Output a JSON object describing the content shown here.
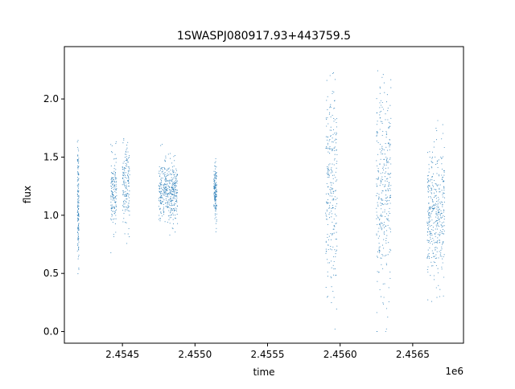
{
  "chart_data": {
    "type": "scatter",
    "title": "1SWASPJ080917.93+443759.5",
    "xlabel": "time",
    "ylabel": "flux",
    "x_offset_label": "1e6",
    "xlim": [
      2.4541,
      2.45685
    ],
    "ylim": [
      -0.1,
      2.45
    ],
    "x_ticks": [
      2.4545,
      2.455,
      2.4555,
      2.456,
      2.4565
    ],
    "x_tick_labels": [
      "2.4545",
      "2.4550",
      "2.4555",
      "2.4560",
      "2.4565"
    ],
    "y_ticks": [
      0.0,
      0.5,
      1.0,
      1.5,
      2.0
    ],
    "y_tick_labels": [
      "0.0",
      "0.5",
      "1.0",
      "1.5",
      "2.0"
    ],
    "grid": false,
    "marker_color": "#1f77b4",
    "series": [
      {
        "points_note": "approximate observation clusters (x in units of 1e6, flux mean, spread)",
        "clusters": [
          {
            "x_start": 2.45419,
            "x_end": 2.4542,
            "center": 1.1,
            "spread": 0.25
          },
          {
            "x_start": 2.45442,
            "x_end": 2.45446,
            "center": 1.2,
            "spread": 0.15
          },
          {
            "x_start": 2.4545,
            "x_end": 2.45455,
            "center": 1.25,
            "spread": 0.17
          },
          {
            "x_start": 2.45475,
            "x_end": 2.45488,
            "center": 1.2,
            "spread": 0.13
          },
          {
            "x_start": 2.45513,
            "x_end": 2.45515,
            "center": 1.2,
            "spread": 0.12
          },
          {
            "x_start": 2.4559,
            "x_end": 2.45598,
            "center": 1.2,
            "spread": 0.45
          },
          {
            "x_start": 2.45625,
            "x_end": 2.45635,
            "center": 1.2,
            "spread": 0.45
          },
          {
            "x_start": 2.4566,
            "x_end": 2.45672,
            "center": 1.0,
            "spread": 0.3
          }
        ]
      }
    ]
  }
}
